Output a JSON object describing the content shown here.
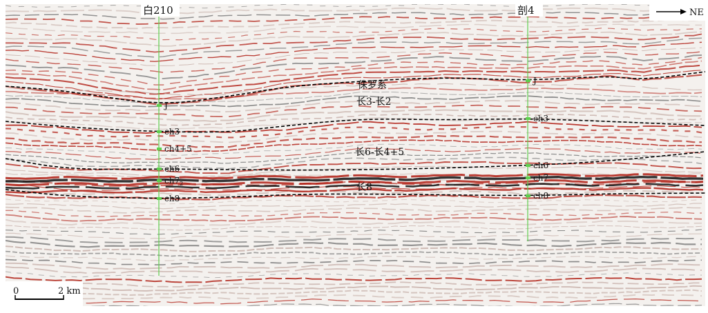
{
  "wells": [
    {
      "name": "白210",
      "markers": [
        "J",
        "ch3",
        "ch4+5",
        "ch6",
        "ch7",
        "ch8"
      ],
      "subscript": {
        "4": "2"
      }
    },
    {
      "name": "剖4",
      "markers": [
        "J",
        "ch3",
        "ch6",
        "ch7",
        "ch8"
      ],
      "subscript": {}
    }
  ],
  "units": [
    "侏罗系",
    "长3-长2",
    "长6-长4+5",
    "长8"
  ],
  "north_arrow": {
    "label": "NE"
  },
  "scale_bar": {
    "min_label": "0",
    "max_label": "2 km"
  },
  "colors": {
    "peak": "#b01e14",
    "trough": "#111111",
    "well_line": "#5fcf4e",
    "horizon": "#000000"
  }
}
